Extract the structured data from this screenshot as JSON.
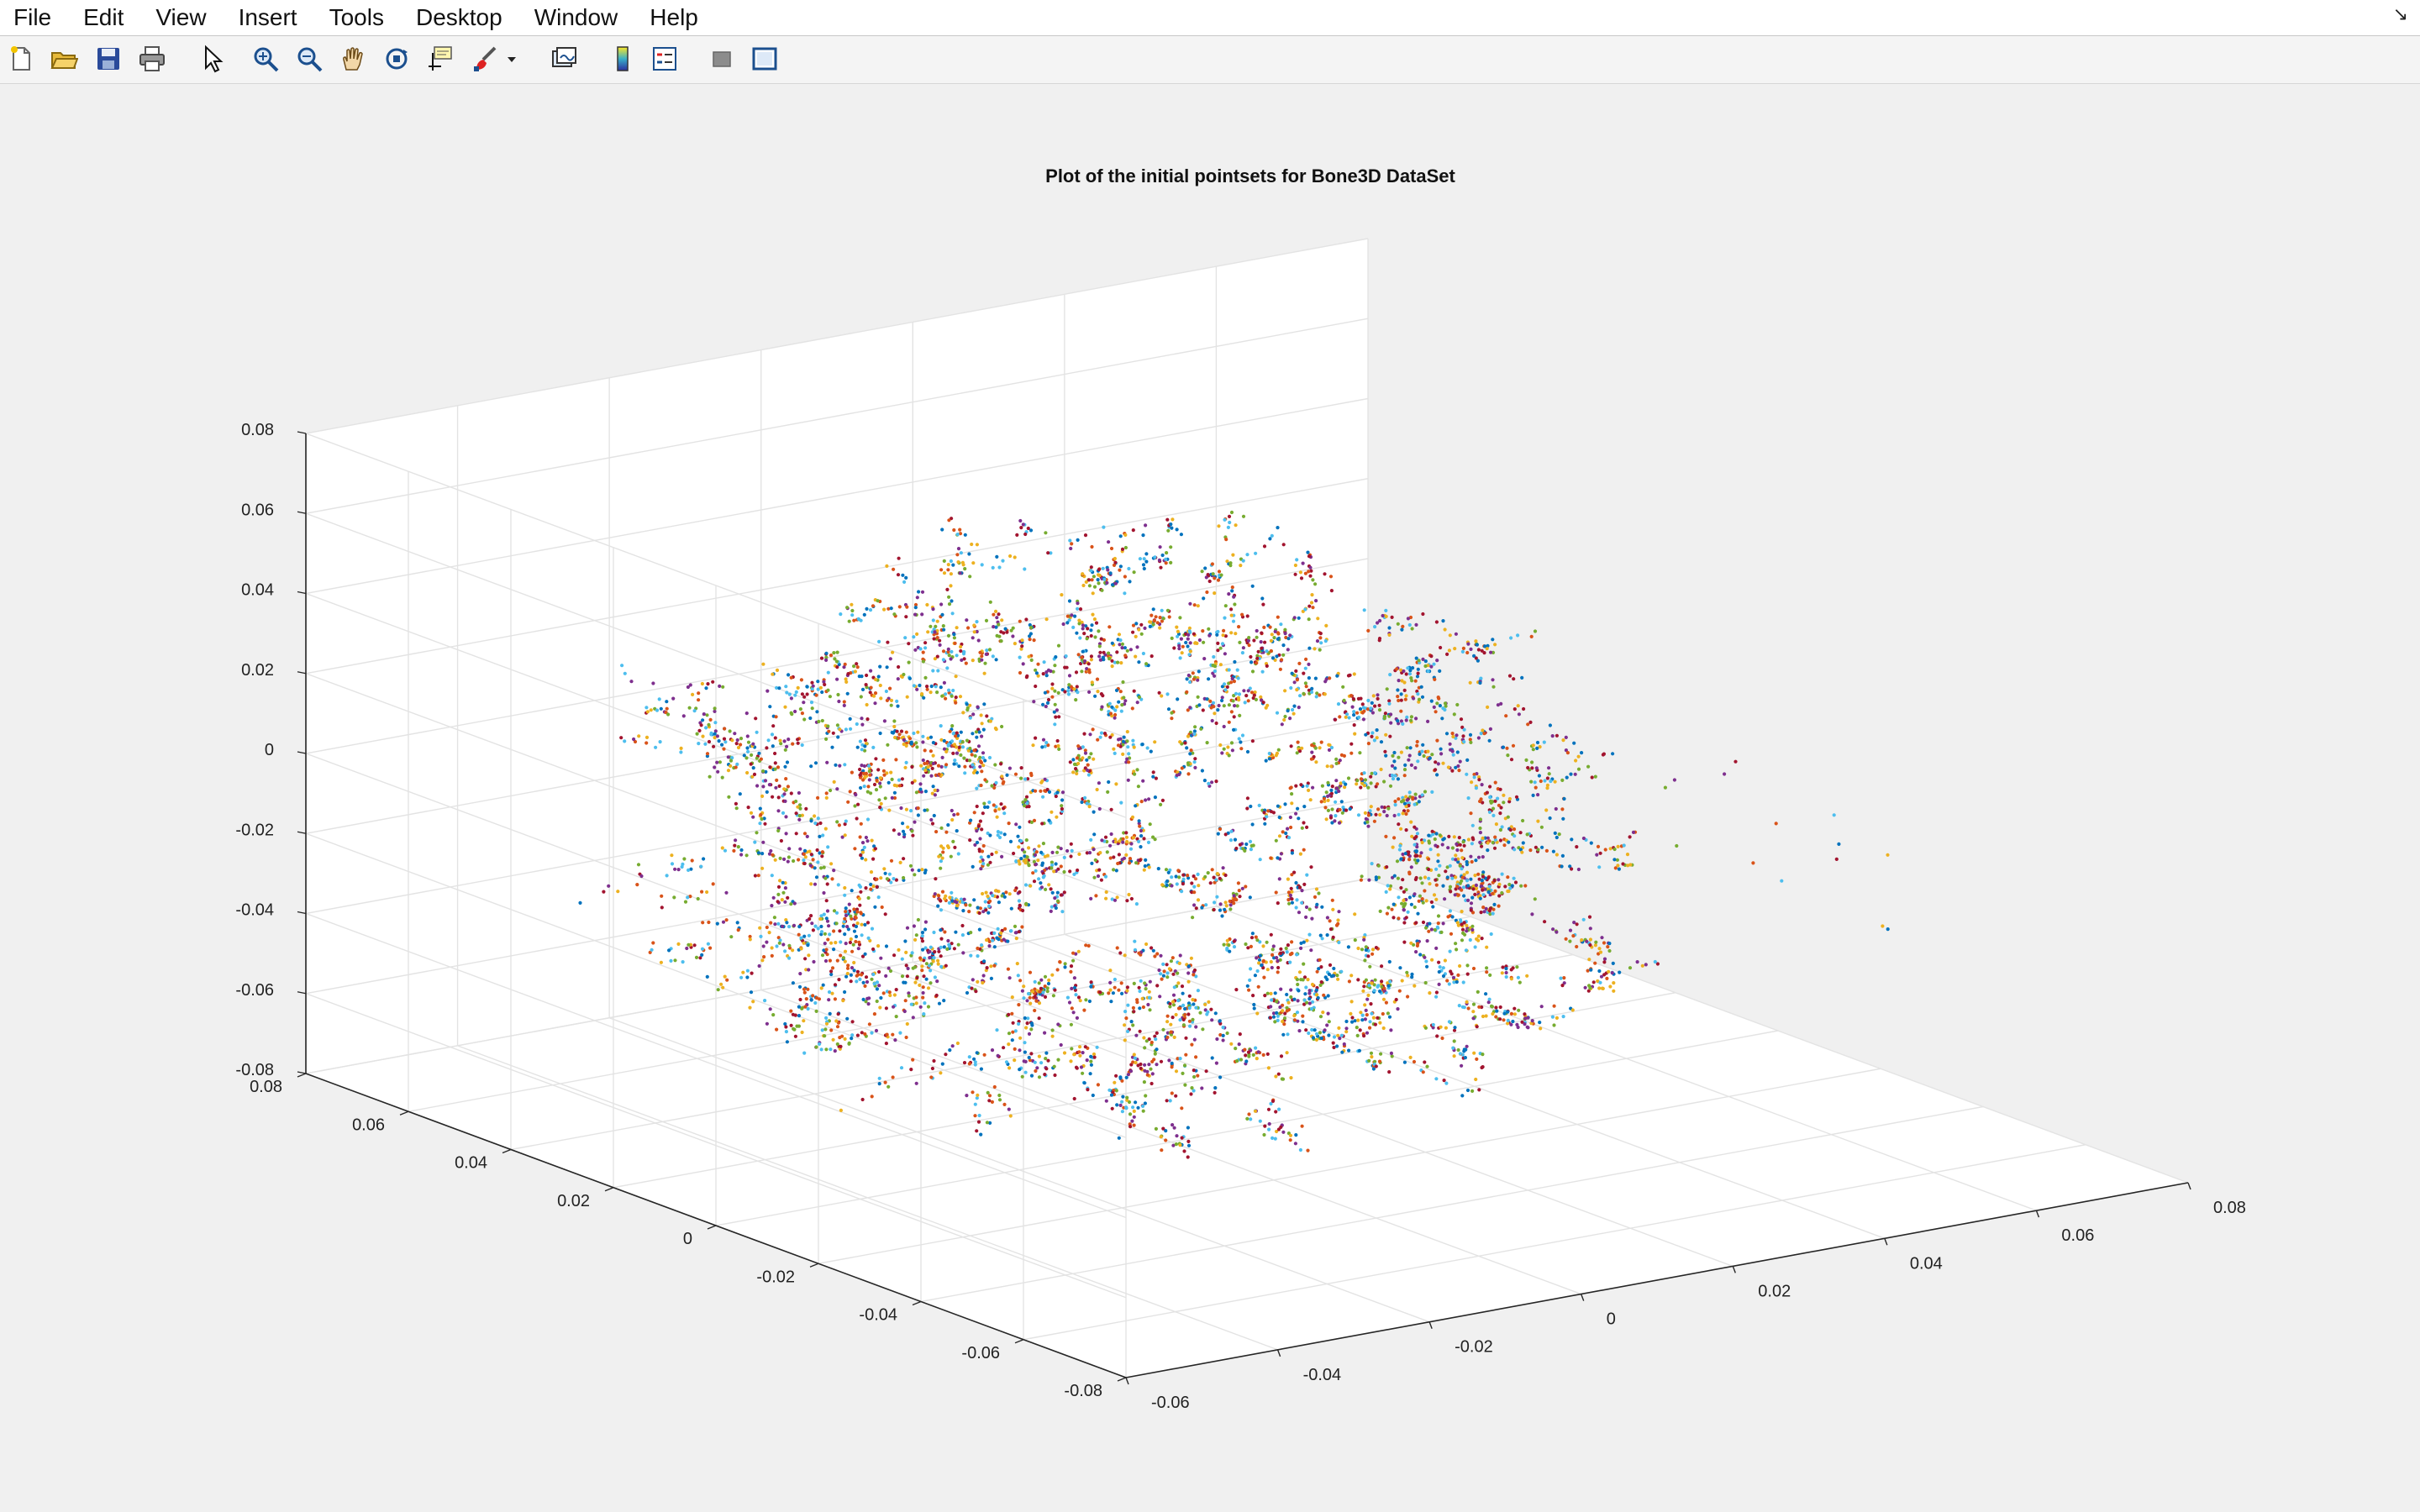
{
  "menu": [
    "File",
    "Edit",
    "View",
    "Insert",
    "Tools",
    "Desktop",
    "Window",
    "Help"
  ],
  "toolbar": {
    "icons": [
      "new-figure-icon",
      "open-file-icon",
      "save-icon",
      "print-icon",
      "edit-plot-arrow-icon",
      "zoom-in-icon",
      "zoom-out-icon",
      "pan-hand-icon",
      "rotate-3d-icon",
      "data-cursor-icon",
      "brush-icon",
      "brush-dropdown-icon",
      "link-plot-icon",
      "colorbar-icon",
      "legend-icon",
      "hide-plot-tools-icon",
      "show-plot-tools-icon"
    ]
  },
  "colors": {
    "series": [
      "#0072BD",
      "#D95319",
      "#EDB120",
      "#7E2F8E",
      "#77AC30",
      "#4DBEEE",
      "#A2142F"
    ],
    "axes_background": "#ffffff",
    "figure_background": "#f0f0f0",
    "grid": "#e3e3e3"
  },
  "chart_data": {
    "type": "scatter",
    "dimensions": 3,
    "title": "Plot of the initial pointsets for Bone3D DataSet",
    "xlabel": "",
    "ylabel": "",
    "zlabel": "",
    "xlim": [
      -0.06,
      0.08
    ],
    "ylim": [
      -0.08,
      0.08
    ],
    "zlim": [
      -0.08,
      0.08
    ],
    "xticks": [
      -0.06,
      -0.04,
      -0.02,
      0,
      0.02,
      0.04,
      0.06,
      0.08
    ],
    "yticks": [
      -0.08,
      -0.06,
      -0.04,
      -0.02,
      0,
      0.02,
      0.04,
      0.06,
      0.08
    ],
    "zticks": [
      -0.08,
      -0.06,
      -0.04,
      -0.02,
      0,
      0.02,
      0.04,
      0.06,
      0.08
    ],
    "xtick_labels": [
      "-0.06",
      "-0.04",
      "-0.02",
      "0",
      "0.02",
      "0.04",
      "0.06",
      "0.08"
    ],
    "ytick_labels": [
      "-0.08",
      "-0.06",
      "-0.04",
      "-0.02",
      "0",
      "0.02",
      "0.04",
      "0.06",
      "0.08"
    ],
    "ztick_labels": [
      "-0.08",
      "-0.06",
      "-0.04",
      "-0.02",
      "0",
      "0.02",
      "0.04",
      "0.06",
      "0.08"
    ],
    "grid": true,
    "legend": "none",
    "series_count": 7,
    "points_per_series_approx": 700,
    "marker": "dot",
    "shape": "ellipsoidal point cloud centered near the origin, roughly spanning x -0.055 to 0.05, y -0.06 to 0.07, z -0.075 to 0.065, with sparse outliers toward x 0.05",
    "structure": "points cluster along many short radial curved filaments; interior region around the center is relatively sparse; a concentrated ring of filaments surrounds the center"
  }
}
